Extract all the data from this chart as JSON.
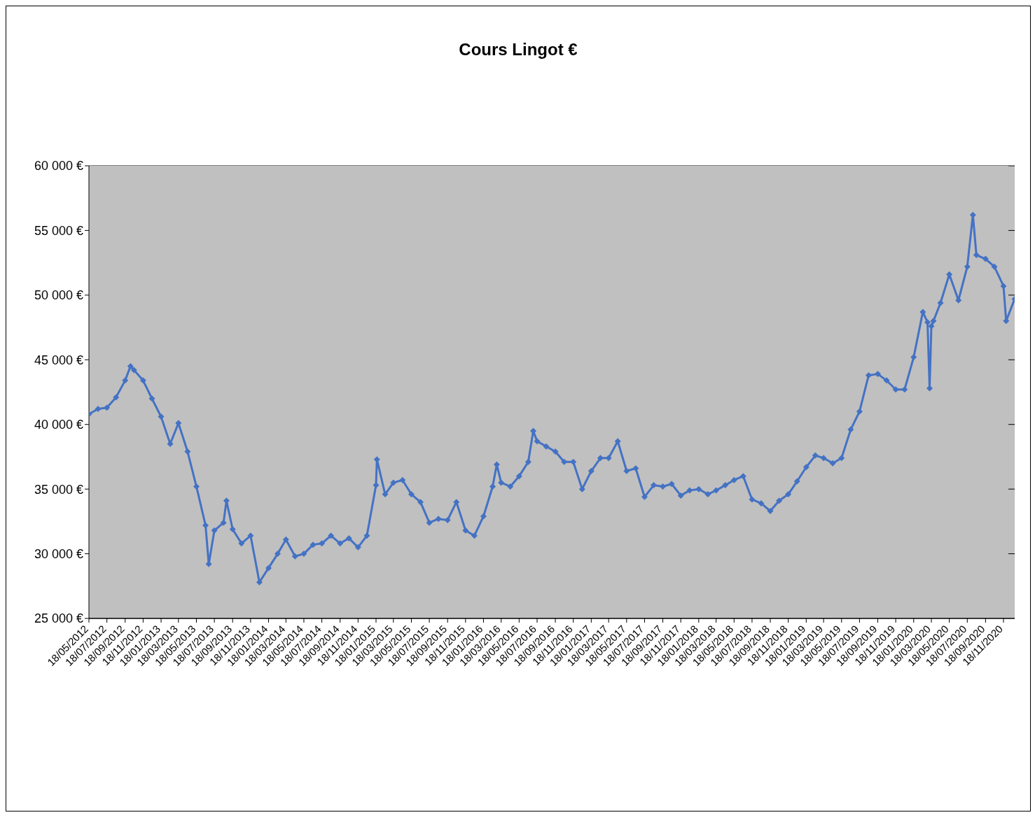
{
  "chart_data": {
    "type": "line",
    "title": "Cours Lingot €",
    "x": [
      "2012-05-18",
      "2012-06-18",
      "2012-07-18",
      "2012-08-18",
      "2012-09-18",
      "2012-10-06",
      "2012-10-18",
      "2012-11-18",
      "2012-12-18",
      "2013-01-18",
      "2013-02-18",
      "2013-03-18",
      "2013-04-18",
      "2013-05-18",
      "2013-06-18",
      "2013-06-29",
      "2013-07-18",
      "2013-08-18",
      "2013-08-28",
      "2013-09-18",
      "2013-10-18",
      "2013-11-18",
      "2013-12-18",
      "2014-01-18",
      "2014-02-18",
      "2014-03-18",
      "2014-04-18",
      "2014-05-18",
      "2014-06-18",
      "2014-07-18",
      "2014-08-18",
      "2014-09-18",
      "2014-10-18",
      "2014-11-18",
      "2014-12-18",
      "2015-01-18",
      "2015-01-21",
      "2015-02-18",
      "2015-03-18",
      "2015-04-18",
      "2015-05-18",
      "2015-06-18",
      "2015-07-18",
      "2015-08-18",
      "2015-09-18",
      "2015-10-18",
      "2015-11-18",
      "2015-12-18",
      "2016-01-18",
      "2016-02-18",
      "2016-03-03",
      "2016-03-18",
      "2016-04-18",
      "2016-05-18",
      "2016-06-18",
      "2016-07-05",
      "2016-07-18",
      "2016-08-18",
      "2016-09-18",
      "2016-10-18",
      "2016-11-18",
      "2016-12-18",
      "2017-01-18",
      "2017-02-18",
      "2017-03-18",
      "2017-04-18",
      "2017-05-18",
      "2017-06-18",
      "2017-07-18",
      "2017-08-18",
      "2017-09-18",
      "2017-10-18",
      "2017-11-18",
      "2017-12-18",
      "2018-01-18",
      "2018-02-18",
      "2018-03-18",
      "2018-04-18",
      "2018-05-18",
      "2018-06-18",
      "2018-07-18",
      "2018-08-18",
      "2018-09-18",
      "2018-10-18",
      "2018-11-18",
      "2018-12-18",
      "2019-01-18",
      "2019-02-18",
      "2019-03-18",
      "2019-04-18",
      "2019-05-18",
      "2019-06-18",
      "2019-07-18",
      "2019-08-18",
      "2019-09-18",
      "2019-10-18",
      "2019-11-18",
      "2019-12-18",
      "2020-01-18",
      "2020-02-18",
      "2020-03-05",
      "2020-03-12",
      "2020-03-18",
      "2020-03-25",
      "2020-04-18",
      "2020-05-18",
      "2020-06-18",
      "2020-07-18",
      "2020-08-06",
      "2020-08-18",
      "2020-09-18",
      "2020-10-18",
      "2020-11-18",
      "2020-11-27",
      "2020-12-26"
    ],
    "series": [
      {
        "color": "#4472c4",
        "values": [
          40800,
          41200,
          41300,
          42100,
          43400,
          44500,
          44200,
          43400,
          42000,
          40600,
          38500,
          40100,
          37900,
          35200,
          32200,
          29200,
          31800,
          32400,
          34100,
          31900,
          30800,
          31400,
          27800,
          28900,
          30000,
          31100,
          29800,
          30000,
          30700,
          30800,
          31400,
          30800,
          31200,
          30500,
          31400,
          35300,
          37300,
          34600,
          35500,
          35700,
          34600,
          34000,
          32400,
          32700,
          32600,
          34000,
          31800,
          31400,
          32900,
          35200,
          36900,
          35500,
          35200,
          36000,
          37100,
          39500,
          38700,
          38300,
          37900,
          37100,
          37100,
          35000,
          36400,
          37400,
          37400,
          38700,
          36400,
          36600,
          34400,
          35300,
          35200,
          35400,
          34500,
          34900,
          35000,
          34600,
          34900,
          35300,
          35700,
          36000,
          34200,
          33900,
          33300,
          34100,
          34600,
          35600,
          36700,
          37600,
          37400,
          37000,
          37400,
          39600,
          41000,
          43800,
          43900,
          43400,
          42700,
          42700,
          45200,
          48700,
          47900,
          42800,
          47600,
          48000,
          49400,
          51600,
          49600,
          52200,
          56200,
          53100,
          52800,
          52200,
          50700,
          48000,
          49700
        ]
      }
    ],
    "xlim": [
      "2012-05-18",
      "2020-12-26"
    ],
    "xticks": [
      {
        "value": "2012-05-18",
        "label": "18/05/2012"
      },
      {
        "value": "2012-07-18",
        "label": "18/07/2012"
      },
      {
        "value": "2012-09-18",
        "label": "18/09/2012"
      },
      {
        "value": "2012-11-18",
        "label": "18/11/2012"
      },
      {
        "value": "2013-01-18",
        "label": "18/01/2013"
      },
      {
        "value": "2013-03-18",
        "label": "18/03/2013"
      },
      {
        "value": "2013-05-18",
        "label": "18/05/2013"
      },
      {
        "value": "2013-07-18",
        "label": "18/07/2013"
      },
      {
        "value": "2013-09-18",
        "label": "18/09/2013"
      },
      {
        "value": "2013-11-18",
        "label": "18/11/2013"
      },
      {
        "value": "2014-01-18",
        "label": "18/01/2014"
      },
      {
        "value": "2014-03-18",
        "label": "18/03/2014"
      },
      {
        "value": "2014-05-18",
        "label": "18/05/2014"
      },
      {
        "value": "2014-07-18",
        "label": "18/07/2014"
      },
      {
        "value": "2014-09-18",
        "label": "18/09/2014"
      },
      {
        "value": "2014-11-18",
        "label": "18/11/2014"
      },
      {
        "value": "2015-01-18",
        "label": "18/01/2015"
      },
      {
        "value": "2015-03-18",
        "label": "18/03/2015"
      },
      {
        "value": "2015-05-18",
        "label": "18/05/2015"
      },
      {
        "value": "2015-07-18",
        "label": "18/07/2015"
      },
      {
        "value": "2015-09-18",
        "label": "18/09/2015"
      },
      {
        "value": "2015-11-18",
        "label": "18/11/2015"
      },
      {
        "value": "2016-01-18",
        "label": "18/01/2016"
      },
      {
        "value": "2016-03-18",
        "label": "18/03/2016"
      },
      {
        "value": "2016-05-18",
        "label": "18/05/2016"
      },
      {
        "value": "2016-07-18",
        "label": "18/07/2016"
      },
      {
        "value": "2016-09-18",
        "label": "18/09/2016"
      },
      {
        "value": "2016-11-18",
        "label": "18/11/2016"
      },
      {
        "value": "2017-01-18",
        "label": "18/01/2017"
      },
      {
        "value": "2017-03-18",
        "label": "18/03/2017"
      },
      {
        "value": "2017-05-18",
        "label": "18/05/2017"
      },
      {
        "value": "2017-07-18",
        "label": "18/07/2017"
      },
      {
        "value": "2017-09-18",
        "label": "18/09/2017"
      },
      {
        "value": "2017-11-18",
        "label": "18/11/2017"
      },
      {
        "value": "2018-01-18",
        "label": "18/01/2018"
      },
      {
        "value": "2018-03-18",
        "label": "18/03/2018"
      },
      {
        "value": "2018-05-18",
        "label": "18/05/2018"
      },
      {
        "value": "2018-07-18",
        "label": "18/07/2018"
      },
      {
        "value": "2018-09-18",
        "label": "18/09/2018"
      },
      {
        "value": "2018-11-18",
        "label": "18/11/2018"
      },
      {
        "value": "2019-01-18",
        "label": "18/01/2019"
      },
      {
        "value": "2019-03-18",
        "label": "18/03/2019"
      },
      {
        "value": "2019-05-18",
        "label": "18/05/2019"
      },
      {
        "value": "2019-07-18",
        "label": "18/07/2019"
      },
      {
        "value": "2019-09-18",
        "label": "18/09/2019"
      },
      {
        "value": "2019-11-18",
        "label": "18/11/2019"
      },
      {
        "value": "2020-01-18",
        "label": "18/01/2020"
      },
      {
        "value": "2020-03-18",
        "label": "18/03/2020"
      },
      {
        "value": "2020-05-18",
        "label": "18/05/2020"
      },
      {
        "value": "2020-07-18",
        "label": "18/07/2020"
      },
      {
        "value": "2020-09-18",
        "label": "18/09/2020"
      },
      {
        "value": "2020-11-18",
        "label": "18/11/2020"
      }
    ],
    "ylim": [
      25000,
      60000
    ],
    "yticks": [
      {
        "value": 25000,
        "label": "25 000 €"
      },
      {
        "value": 30000,
        "label": "30 000 €"
      },
      {
        "value": 35000,
        "label": "35 000 €"
      },
      {
        "value": 40000,
        "label": "40 000 €"
      },
      {
        "value": 45000,
        "label": "45 000 €"
      },
      {
        "value": 50000,
        "label": "50 000 €"
      },
      {
        "value": 55000,
        "label": "55 000 €"
      },
      {
        "value": 60000,
        "label": "60 000 €"
      }
    ],
    "grid": "y",
    "legend": false,
    "marker": "diamond",
    "line_style": "solid"
  }
}
